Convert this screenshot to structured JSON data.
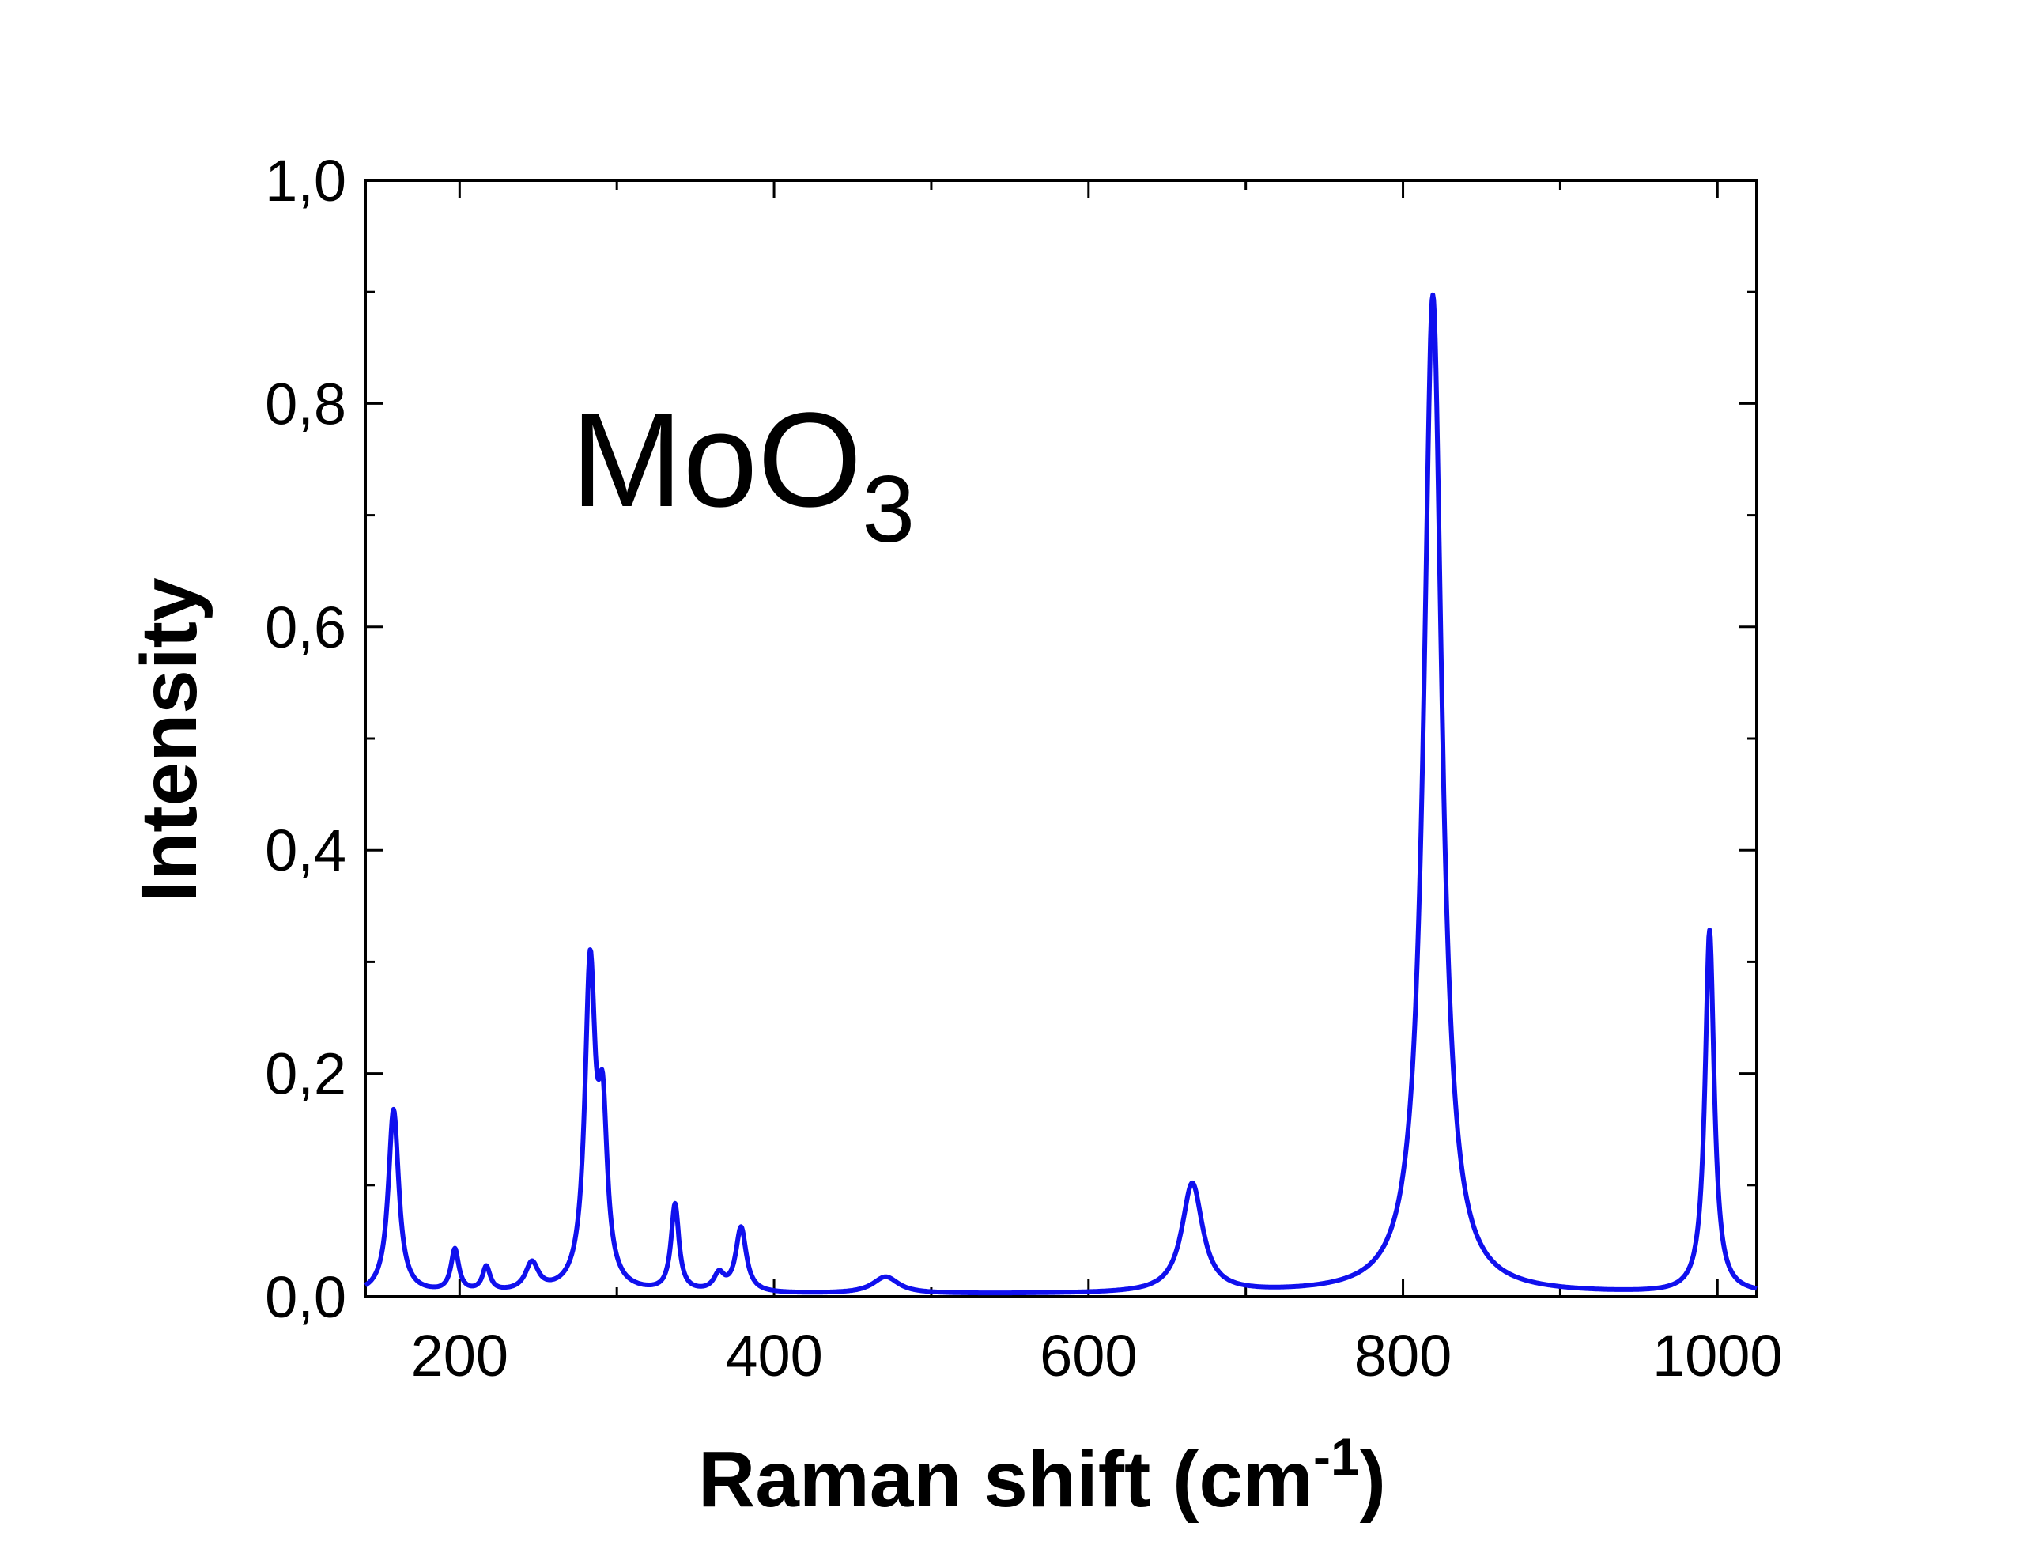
{
  "chart_data": {
    "type": "line",
    "title": "",
    "annotation": {
      "main": "MoO",
      "subscript": "3"
    },
    "xlabel": {
      "main": "Raman shift (cm",
      "superscript": "-1",
      "close": ")"
    },
    "ylabel": "Intensity",
    "xlim": [
      140,
      1025
    ],
    "ylim": [
      0,
      1.0
    ],
    "xticks": [
      200,
      400,
      600,
      800,
      1000
    ],
    "xtick_labels": [
      "200",
      "400",
      "600",
      "800",
      "1000"
    ],
    "yticks": [
      0,
      0.2,
      0.4,
      0.6,
      0.8,
      1.0
    ],
    "ytick_labels": [
      "0,0",
      "0,2",
      "0,4",
      "0,6",
      "0,8",
      "1,0"
    ],
    "grid": false,
    "legend": "none",
    "series": [
      {
        "color": "#1010ee",
        "peaks": [
          {
            "x": 158,
            "y": 0.165,
            "w": 4
          },
          {
            "x": 197,
            "y": 0.038,
            "w": 3
          },
          {
            "x": 217,
            "y": 0.022,
            "w": 3
          },
          {
            "x": 246,
            "y": 0.025,
            "w": 5
          },
          {
            "x": 283,
            "y": 0.285,
            "w": 4
          },
          {
            "x": 291,
            "y": 0.14,
            "w": 3.5
          },
          {
            "x": 337,
            "y": 0.078,
            "w": 3
          },
          {
            "x": 365,
            "y": 0.015,
            "w": 4
          },
          {
            "x": 379,
            "y": 0.058,
            "w": 4
          },
          {
            "x": 471,
            "y": 0.015,
            "w": 10
          },
          {
            "x": 666,
            "y": 0.098,
            "w": 8
          },
          {
            "x": 819,
            "y": 0.895,
            "w": 7
          },
          {
            "x": 995,
            "y": 0.325,
            "w": 3.5
          }
        ],
        "baseline": 0.002
      }
    ]
  }
}
